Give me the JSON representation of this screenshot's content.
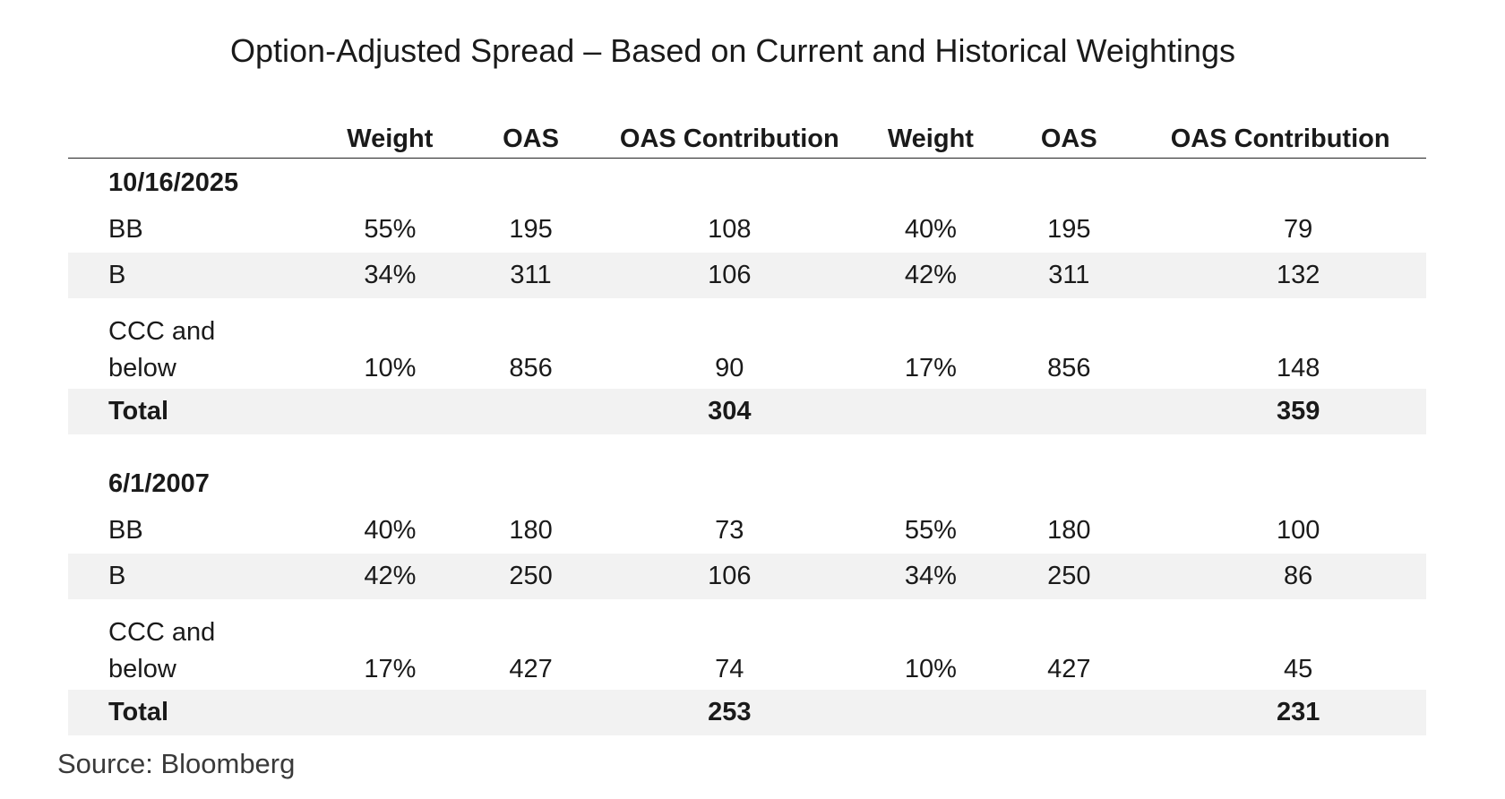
{
  "title": "Option-Adjusted Spread – Based on Current and Historical Weightings",
  "headers": [
    "",
    "Weight",
    "OAS",
    "OAS Contribution",
    "Weight",
    "OAS",
    "OAS Contribution"
  ],
  "sections": [
    {
      "date": "10/16/2025",
      "rows": [
        {
          "label": "BB",
          "w1": "55%",
          "oas1": "195",
          "c1": "108",
          "w2": "40%",
          "oas2": "195",
          "c2": "79"
        },
        {
          "label": "B",
          "w1": "34%",
          "oas1": "311",
          "c1": "106",
          "w2": "42%",
          "oas2": "311",
          "c2": "132"
        },
        {
          "label_line1": "CCC and",
          "label_line2": "below",
          "w1": "10%",
          "oas1": "856",
          "c1": "90",
          "w2": "17%",
          "oas2": "856",
          "c2": "148"
        }
      ],
      "total": {
        "label": "Total",
        "c1": "304",
        "c2": "359"
      }
    },
    {
      "date": "6/1/2007",
      "rows": [
        {
          "label": "BB",
          "w1": "40%",
          "oas1": "180",
          "c1": "73",
          "w2": "55%",
          "oas2": "180",
          "c2": "100"
        },
        {
          "label": "B",
          "w1": "42%",
          "oas1": "250",
          "c1": "106",
          "w2": "34%",
          "oas2": "250",
          "c2": "86"
        },
        {
          "label_line1": "CCC and",
          "label_line2": "below",
          "w1": "17%",
          "oas1": "427",
          "c1": "74",
          "w2": "10%",
          "oas2": "427",
          "c2": "45"
        }
      ],
      "total": {
        "label": "Total",
        "c1": "253",
        "c2": "231"
      }
    }
  ],
  "source": "Source: Bloomberg"
}
